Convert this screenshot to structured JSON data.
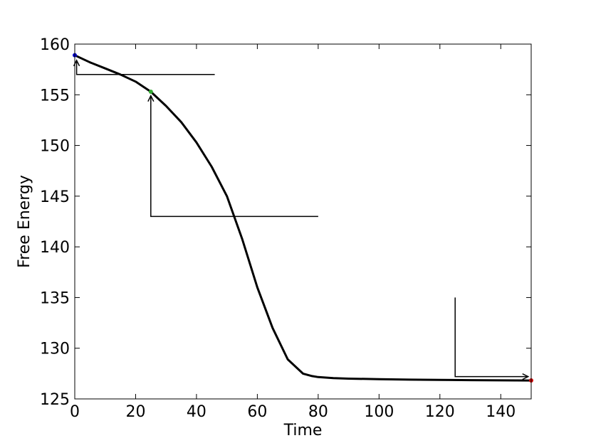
{
  "chart_data": {
    "type": "line",
    "title": "",
    "xlabel": "Time",
    "ylabel": "Free Energy",
    "xlim": [
      0,
      150
    ],
    "ylim": [
      125,
      160
    ],
    "xticks": [
      0,
      20,
      40,
      60,
      80,
      100,
      120,
      140
    ],
    "yticks": [
      125,
      130,
      135,
      140,
      145,
      150,
      155,
      160
    ],
    "grid": false,
    "series": [
      {
        "color": "#000000",
        "x": [
          0,
          5,
          10,
          15,
          20,
          25,
          30,
          35,
          40,
          45,
          50,
          55,
          60,
          65,
          70,
          75,
          78,
          80,
          85,
          90,
          100,
          110,
          120,
          130,
          140,
          150
        ],
        "y": [
          158.9,
          158.2,
          157.6,
          157.0,
          156.3,
          155.3,
          153.9,
          152.3,
          150.3,
          147.9,
          145.0,
          140.8,
          136.0,
          132.0,
          128.9,
          127.5,
          127.25,
          127.15,
          127.05,
          127.0,
          126.95,
          126.9,
          126.87,
          126.85,
          126.83,
          126.82
        ]
      }
    ],
    "markers": [
      {
        "x": 0,
        "y": 158.9,
        "color": "#0000cc"
      },
      {
        "x": 25,
        "y": 155.3,
        "color": "#33aa33"
      },
      {
        "x": 150,
        "y": 126.82,
        "color": "#cc0000"
      }
    ],
    "annotations": [
      {
        "path": [
          [
            46,
            157.0
          ],
          [
            0.6,
            157.0
          ],
          [
            0.6,
            158.4
          ]
        ],
        "arrowhead": "up"
      },
      {
        "path": [
          [
            80,
            143.0
          ],
          [
            25,
            143.0
          ],
          [
            25,
            154.9
          ]
        ],
        "arrowhead": "up"
      },
      {
        "path": [
          [
            125,
            135.0
          ],
          [
            125,
            127.2
          ],
          [
            149,
            127.2
          ]
        ],
        "arrowhead": "right"
      }
    ]
  }
}
